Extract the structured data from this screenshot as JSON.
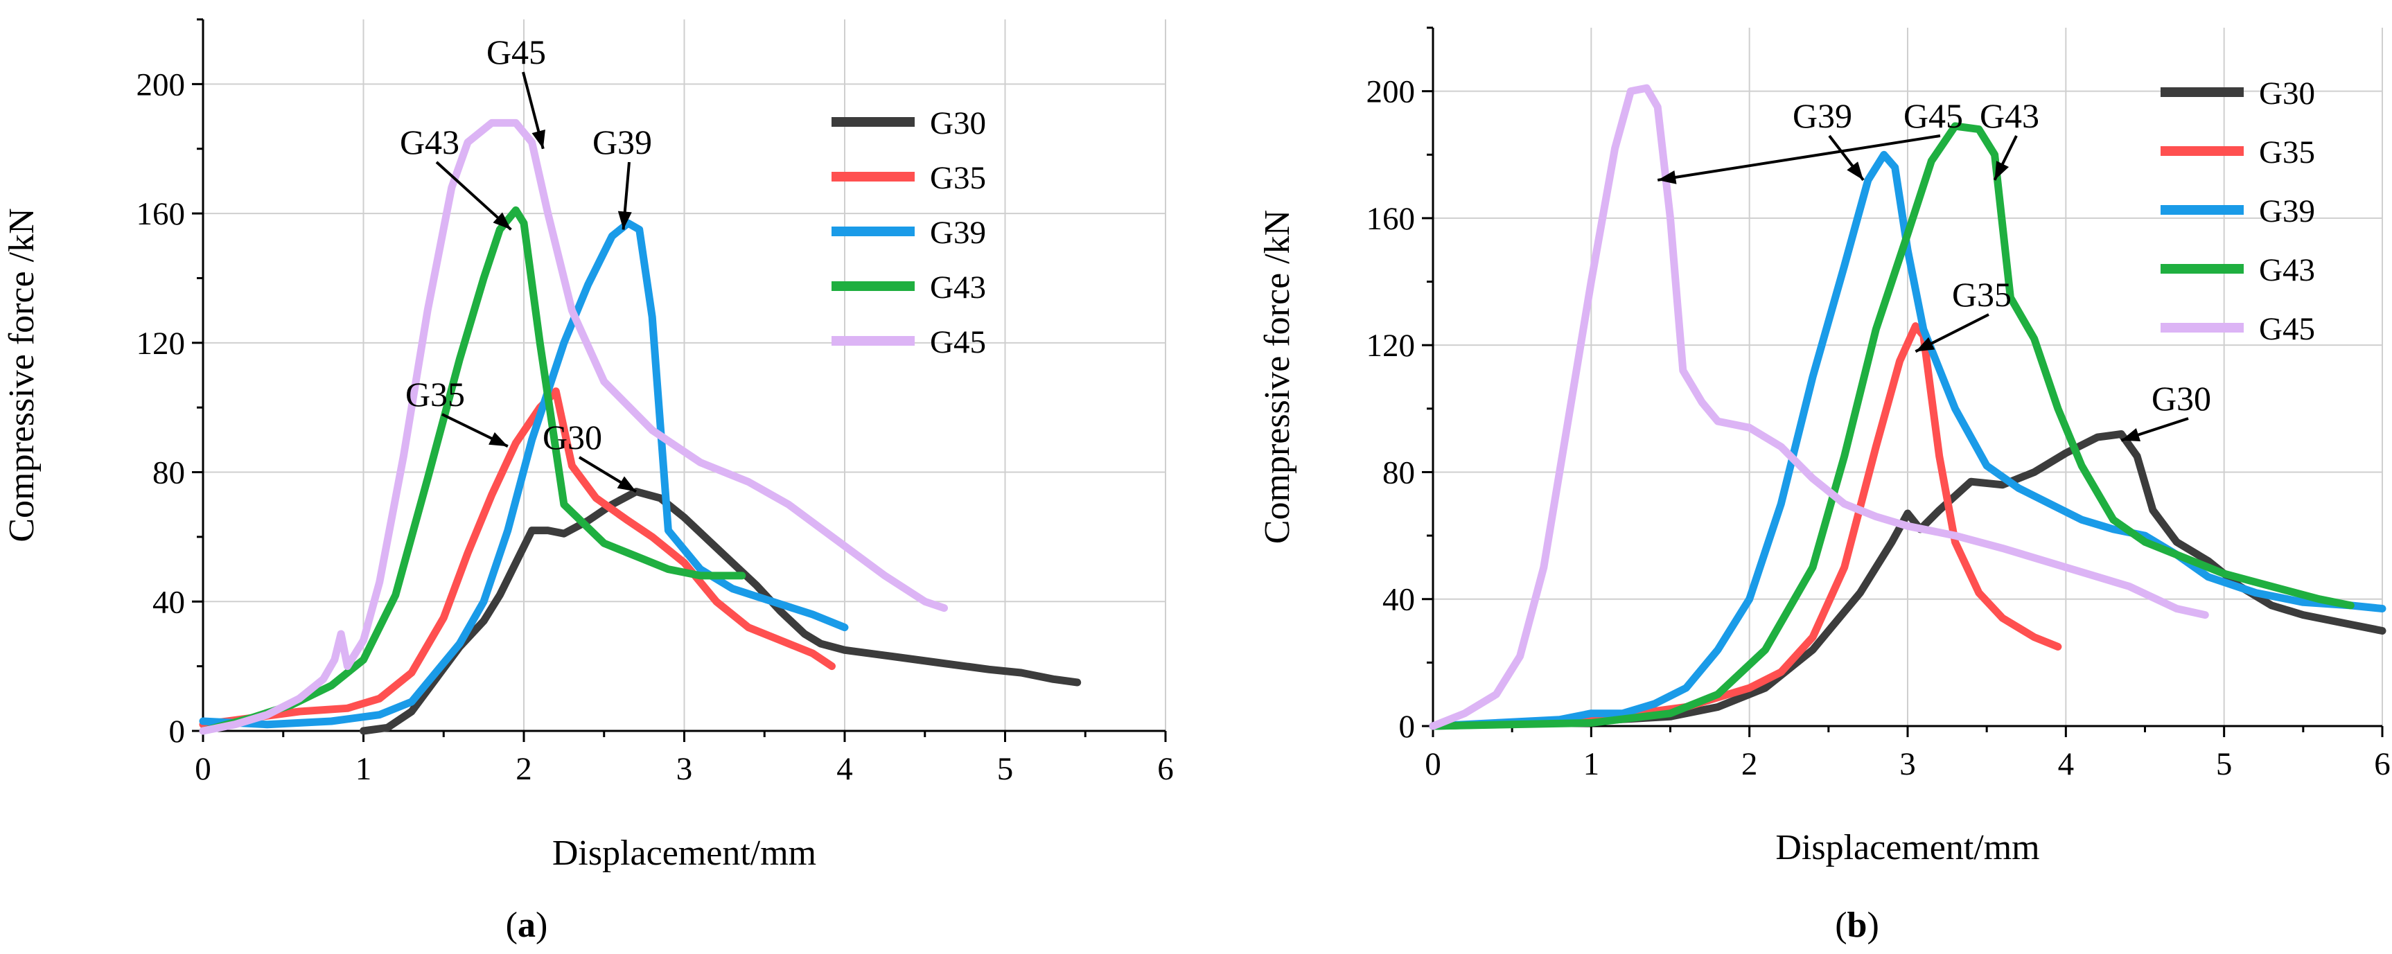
{
  "chart_data": [
    {
      "type": "line",
      "panel": "a",
      "xlabel": "Displacement/mm",
      "ylabel": "Compressive force /kN",
      "xlim": [
        0,
        6
      ],
      "ylim": [
        0,
        220
      ],
      "xticks": [
        0,
        1,
        2,
        3,
        4,
        5,
        6
      ],
      "yticks": [
        0,
        40,
        80,
        120,
        160,
        200
      ],
      "grid": true,
      "legend_position": "top-right",
      "series": [
        {
          "name": "G30",
          "color": "#3c3c3c",
          "points": [
            [
              1.0,
              0
            ],
            [
              1.15,
              1
            ],
            [
              1.3,
              6
            ],
            [
              1.45,
              16
            ],
            [
              1.6,
              26
            ],
            [
              1.75,
              34
            ],
            [
              1.85,
              42
            ],
            [
              1.95,
              52
            ],
            [
              2.05,
              62
            ],
            [
              2.15,
              62
            ],
            [
              2.25,
              61
            ],
            [
              2.4,
              65
            ],
            [
              2.55,
              70
            ],
            [
              2.7,
              74
            ],
            [
              2.85,
              72
            ],
            [
              3.0,
              66
            ],
            [
              3.15,
              59
            ],
            [
              3.3,
              52
            ],
            [
              3.45,
              45
            ],
            [
              3.6,
              37
            ],
            [
              3.75,
              30
            ],
            [
              3.85,
              27
            ],
            [
              4.0,
              25
            ],
            [
              4.3,
              23
            ],
            [
              4.6,
              21
            ],
            [
              4.9,
              19
            ],
            [
              5.1,
              18
            ],
            [
              5.3,
              16
            ],
            [
              5.45,
              15
            ]
          ]
        },
        {
          "name": "G35",
          "color": "#ff5050",
          "points": [
            [
              0.0,
              2
            ],
            [
              0.3,
              4
            ],
            [
              0.6,
              6
            ],
            [
              0.9,
              7
            ],
            [
              1.1,
              10
            ],
            [
              1.3,
              18
            ],
            [
              1.5,
              35
            ],
            [
              1.65,
              55
            ],
            [
              1.8,
              73
            ],
            [
              1.95,
              89
            ],
            [
              2.1,
              100
            ],
            [
              2.2,
              105
            ],
            [
              2.3,
              82
            ],
            [
              2.45,
              72
            ],
            [
              2.65,
              65
            ],
            [
              2.8,
              60
            ],
            [
              3.0,
              52
            ],
            [
              3.2,
              40
            ],
            [
              3.4,
              32
            ],
            [
              3.6,
              28
            ],
            [
              3.8,
              24
            ],
            [
              3.92,
              20
            ]
          ]
        },
        {
          "name": "G39",
          "color": "#1a9be8",
          "points": [
            [
              0.0,
              3
            ],
            [
              0.4,
              2
            ],
            [
              0.8,
              3
            ],
            [
              1.1,
              5
            ],
            [
              1.3,
              9
            ],
            [
              1.45,
              18
            ],
            [
              1.6,
              27
            ],
            [
              1.75,
              40
            ],
            [
              1.9,
              62
            ],
            [
              2.05,
              90
            ],
            [
              2.25,
              120
            ],
            [
              2.4,
              138
            ],
            [
              2.55,
              153
            ],
            [
              2.65,
              157
            ],
            [
              2.72,
              155
            ],
            [
              2.8,
              128
            ],
            [
              2.9,
              62
            ],
            [
              3.1,
              50
            ],
            [
              3.3,
              44
            ],
            [
              3.55,
              40
            ],
            [
              3.8,
              36
            ],
            [
              4.0,
              32
            ]
          ]
        },
        {
          "name": "G43",
          "color": "#1faf40",
          "points": [
            [
              0.0,
              0
            ],
            [
              0.3,
              4
            ],
            [
              0.55,
              8
            ],
            [
              0.8,
              14
            ],
            [
              1.0,
              22
            ],
            [
              1.2,
              42
            ],
            [
              1.4,
              78
            ],
            [
              1.6,
              115
            ],
            [
              1.75,
              140
            ],
            [
              1.85,
              155
            ],
            [
              1.95,
              161
            ],
            [
              2.0,
              157
            ],
            [
              2.1,
              120
            ],
            [
              2.25,
              70
            ],
            [
              2.5,
              58
            ],
            [
              2.7,
              54
            ],
            [
              2.9,
              50
            ],
            [
              3.1,
              48
            ],
            [
              3.36,
              48
            ]
          ]
        },
        {
          "name": "G45",
          "color": "#dcb4f5",
          "points": [
            [
              0.0,
              0
            ],
            [
              0.2,
              2
            ],
            [
              0.4,
              5
            ],
            [
              0.6,
              10
            ],
            [
              0.75,
              16
            ],
            [
              0.82,
              22
            ],
            [
              0.86,
              30
            ],
            [
              0.9,
              20
            ],
            [
              1.0,
              28
            ],
            [
              1.1,
              46
            ],
            [
              1.25,
              85
            ],
            [
              1.4,
              130
            ],
            [
              1.55,
              168
            ],
            [
              1.65,
              182
            ],
            [
              1.8,
              188
            ],
            [
              1.95,
              188
            ],
            [
              2.05,
              182
            ],
            [
              2.15,
              160
            ],
            [
              2.3,
              130
            ],
            [
              2.5,
              108
            ],
            [
              2.8,
              93
            ],
            [
              3.1,
              83
            ],
            [
              3.4,
              77
            ],
            [
              3.65,
              70
            ],
            [
              3.95,
              59
            ],
            [
              4.25,
              48
            ],
            [
              4.5,
              40
            ],
            [
              4.62,
              38
            ]
          ]
        }
      ],
      "annotations": [
        {
          "label": "G45",
          "points_to_series": "G45",
          "target": [
            2.12,
            180
          ]
        },
        {
          "label": "G43",
          "points_to_series": "G43",
          "target": [
            1.92,
            155
          ]
        },
        {
          "label": "G39",
          "points_to_series": "G39",
          "target": [
            2.62,
            155
          ]
        },
        {
          "label": "G35",
          "points_to_series": "G35",
          "target": [
            1.9,
            88
          ]
        },
        {
          "label": "G30",
          "points_to_series": "G30",
          "target": [
            2.7,
            74
          ]
        }
      ]
    },
    {
      "type": "line",
      "panel": "b",
      "xlabel": "Displacement/mm",
      "ylabel": "Compressive force /kN",
      "xlim": [
        0,
        6
      ],
      "ylim": [
        0,
        220
      ],
      "xticks": [
        0,
        1,
        2,
        3,
        4,
        5,
        6
      ],
      "yticks": [
        0,
        40,
        80,
        120,
        160,
        200
      ],
      "grid": true,
      "legend_position": "top-right",
      "series": [
        {
          "name": "G30",
          "color": "#3c3c3c",
          "points": [
            [
              0.0,
              0
            ],
            [
              0.8,
              1
            ],
            [
              1.5,
              3
            ],
            [
              1.8,
              6
            ],
            [
              2.1,
              12
            ],
            [
              2.4,
              24
            ],
            [
              2.7,
              42
            ],
            [
              2.9,
              58
            ],
            [
              3.0,
              67
            ],
            [
              3.08,
              62
            ],
            [
              3.2,
              68
            ],
            [
              3.4,
              77
            ],
            [
              3.6,
              76
            ],
            [
              3.8,
              80
            ],
            [
              4.0,
              86
            ],
            [
              4.2,
              91
            ],
            [
              4.35,
              92
            ],
            [
              4.45,
              85
            ],
            [
              4.55,
              68
            ],
            [
              4.7,
              58
            ],
            [
              4.9,
              52
            ],
            [
              5.1,
              44
            ],
            [
              5.3,
              38
            ],
            [
              5.5,
              35
            ],
            [
              5.8,
              32
            ],
            [
              6.0,
              30
            ]
          ]
        },
        {
          "name": "G35",
          "color": "#ff5050",
          "points": [
            [
              0.0,
              0
            ],
            [
              1.0,
              2
            ],
            [
              1.6,
              6
            ],
            [
              2.0,
              12
            ],
            [
              2.2,
              17
            ],
            [
              2.4,
              28
            ],
            [
              2.6,
              50
            ],
            [
              2.8,
              88
            ],
            [
              2.95,
              115
            ],
            [
              3.05,
              126
            ],
            [
              3.1,
              123
            ],
            [
              3.2,
              85
            ],
            [
              3.3,
              58
            ],
            [
              3.45,
              42
            ],
            [
              3.6,
              34
            ],
            [
              3.8,
              28
            ],
            [
              3.95,
              25
            ]
          ]
        },
        {
          "name": "G39",
          "color": "#1a9be8",
          "points": [
            [
              0.0,
              0
            ],
            [
              0.8,
              2
            ],
            [
              1.0,
              4
            ],
            [
              1.2,
              4
            ],
            [
              1.4,
              7
            ],
            [
              1.6,
              12
            ],
            [
              1.8,
              24
            ],
            [
              2.0,
              40
            ],
            [
              2.2,
              70
            ],
            [
              2.4,
              110
            ],
            [
              2.6,
              145
            ],
            [
              2.75,
              172
            ],
            [
              2.85,
              180
            ],
            [
              2.92,
              176
            ],
            [
              3.0,
              150
            ],
            [
              3.1,
              125
            ],
            [
              3.3,
              100
            ],
            [
              3.5,
              82
            ],
            [
              3.7,
              75
            ],
            [
              3.9,
              70
            ],
            [
              4.1,
              65
            ],
            [
              4.3,
              62
            ],
            [
              4.5,
              60
            ],
            [
              4.7,
              54
            ],
            [
              4.9,
              47
            ],
            [
              5.2,
              42
            ],
            [
              5.5,
              39
            ],
            [
              5.8,
              38
            ],
            [
              6.0,
              37
            ]
          ]
        },
        {
          "name": "G43",
          "color": "#1faf40",
          "points": [
            [
              0.0,
              0
            ],
            [
              1.0,
              1
            ],
            [
              1.5,
              4
            ],
            [
              1.8,
              10
            ],
            [
              2.1,
              24
            ],
            [
              2.4,
              50
            ],
            [
              2.6,
              85
            ],
            [
              2.8,
              125
            ],
            [
              3.0,
              155
            ],
            [
              3.15,
              178
            ],
            [
              3.3,
              189
            ],
            [
              3.45,
              188
            ],
            [
              3.55,
              180
            ],
            [
              3.65,
              135
            ],
            [
              3.8,
              122
            ],
            [
              3.95,
              100
            ],
            [
              4.1,
              82
            ],
            [
              4.3,
              65
            ],
            [
              4.5,
              58
            ],
            [
              4.7,
              54
            ],
            [
              5.0,
              48
            ],
            [
              5.3,
              44
            ],
            [
              5.6,
              40
            ],
            [
              5.8,
              38
            ]
          ]
        },
        {
          "name": "G45",
          "color": "#dcb4f5",
          "points": [
            [
              0.0,
              0
            ],
            [
              0.2,
              4
            ],
            [
              0.4,
              10
            ],
            [
              0.55,
              22
            ],
            [
              0.7,
              50
            ],
            [
              0.85,
              95
            ],
            [
              1.0,
              140
            ],
            [
              1.15,
              182
            ],
            [
              1.25,
              200
            ],
            [
              1.35,
              201
            ],
            [
              1.42,
              195
            ],
            [
              1.5,
              160
            ],
            [
              1.58,
              112
            ],
            [
              1.7,
              102
            ],
            [
              1.8,
              96
            ],
            [
              2.0,
              94
            ],
            [
              2.2,
              88
            ],
            [
              2.4,
              78
            ],
            [
              2.6,
              70
            ],
            [
              2.8,
              66
            ],
            [
              3.0,
              63
            ],
            [
              3.3,
              60
            ],
            [
              3.6,
              56
            ],
            [
              4.0,
              50
            ],
            [
              4.4,
              44
            ],
            [
              4.7,
              37
            ],
            [
              4.88,
              35
            ]
          ]
        }
      ],
      "annotations": [
        {
          "label": "G45",
          "points_to_series": "G45",
          "target": [
            1.42,
            172
          ]
        },
        {
          "label": "G39",
          "points_to_series": "G39",
          "target": [
            2.72,
            172
          ]
        },
        {
          "label": "G43",
          "points_to_series": "G43",
          "target": [
            3.55,
            172
          ]
        },
        {
          "label": "G35",
          "points_to_series": "G35",
          "target": [
            3.05,
            118
          ]
        },
        {
          "label": "G30",
          "points_to_series": "G30",
          "target": [
            4.35,
            90
          ]
        }
      ]
    }
  ]
}
